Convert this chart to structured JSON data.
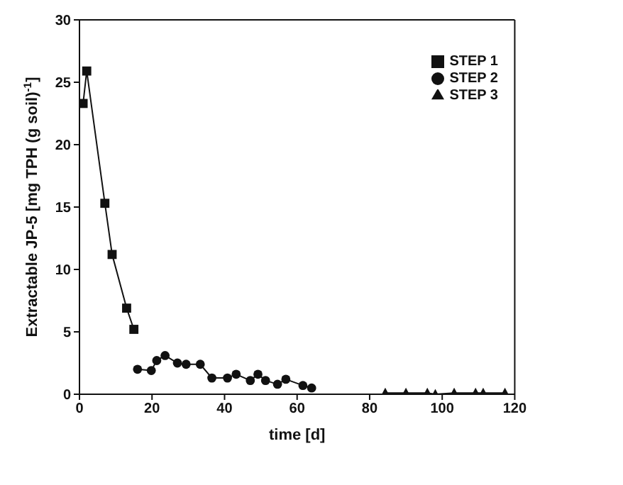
{
  "chart_data": {
    "type": "line",
    "xlabel": "time [d]",
    "ylabel": "Extractable JP-5 [mg TPH (g soil)$^{-1}$]",
    "xlim": [
      0,
      120
    ],
    "xticks": [
      0,
      20,
      40,
      60,
      80,
      100,
      120
    ],
    "ylim": [
      0,
      30
    ],
    "yticks": [
      0,
      5,
      10,
      15,
      20,
      25,
      30
    ],
    "legend": "top right",
    "line_style": "solid",
    "series": [
      {
        "name": "STEP 1",
        "color": "#111111",
        "marker": "square",
        "x": [
          1,
          2,
          7,
          9,
          13,
          15
        ],
        "values": [
          23.3,
          25.9,
          15.3,
          11.2,
          6.9,
          5.2
        ]
      },
      {
        "name": "STEP 2",
        "color": "#111111",
        "marker": "circle",
        "x": [
          16,
          19.8,
          21.3,
          23.6,
          27,
          29.4,
          33.3,
          36.5,
          40.8,
          43.2,
          47.1,
          49.2,
          51.3,
          54.6,
          56.9,
          61.6,
          64
        ],
        "values": [
          2.0,
          1.9,
          2.7,
          3.1,
          2.5,
          2.4,
          2.4,
          1.3,
          1.3,
          1.6,
          1.1,
          1.6,
          1.1,
          0.8,
          1.2,
          0.7,
          0.5
        ]
      },
      {
        "name": "STEP 3",
        "color": "#111111",
        "marker": "triangle",
        "x": [
          84.3,
          90,
          95.9,
          98.1,
          103.3,
          109.2,
          111.3,
          117.3
        ],
        "values": [
          0.1,
          0.1,
          0.1,
          0,
          0.1,
          0.1,
          0.1,
          0.1
        ]
      }
    ]
  }
}
